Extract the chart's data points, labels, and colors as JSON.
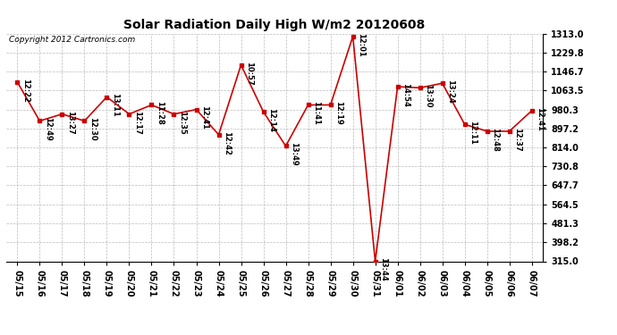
{
  "title": "Solar Radiation Daily High W/m2 20120608",
  "copyright": "Copyright 2012 Cartronics.com",
  "dates": [
    "05/15",
    "05/16",
    "05/17",
    "05/18",
    "05/19",
    "05/20",
    "05/21",
    "05/22",
    "05/23",
    "05/24",
    "05/25",
    "05/26",
    "05/27",
    "05/28",
    "05/29",
    "05/30",
    "05/31",
    "06/01",
    "06/02",
    "06/03",
    "06/04",
    "06/05",
    "06/06",
    "06/07"
  ],
  "values": [
    1100,
    930,
    960,
    930,
    1035,
    960,
    1000,
    960,
    980,
    870,
    1175,
    970,
    820,
    1000,
    1000,
    1300,
    315,
    1080,
    1075,
    1095,
    915,
    885,
    885,
    975
  ],
  "times": [
    "12:22",
    "12:49",
    "13:27",
    "12:30",
    "13:11",
    "12:17",
    "11:28",
    "12:35",
    "12:41",
    "12:42",
    "10:57",
    "12:14",
    "13:49",
    "11:41",
    "12:19",
    "12:01",
    "13:44",
    "14:54",
    "13:30",
    "13:24",
    "12:11",
    "12:48",
    "12:37",
    "12:41"
  ],
  "ymin": 315.0,
  "ymax": 1313.0,
  "yticks": [
    315.0,
    398.2,
    481.3,
    564.5,
    647.7,
    730.8,
    814.0,
    897.2,
    980.3,
    1063.5,
    1146.7,
    1229.8,
    1313.0
  ],
  "line_color": "#cc0000",
  "marker_color": "#cc0000",
  "bg_color": "#ffffff",
  "grid_color": "#bbbbbb",
  "title_fontsize": 10,
  "copyright_fontsize": 6.5,
  "label_fontsize": 6,
  "tick_fontsize": 7
}
